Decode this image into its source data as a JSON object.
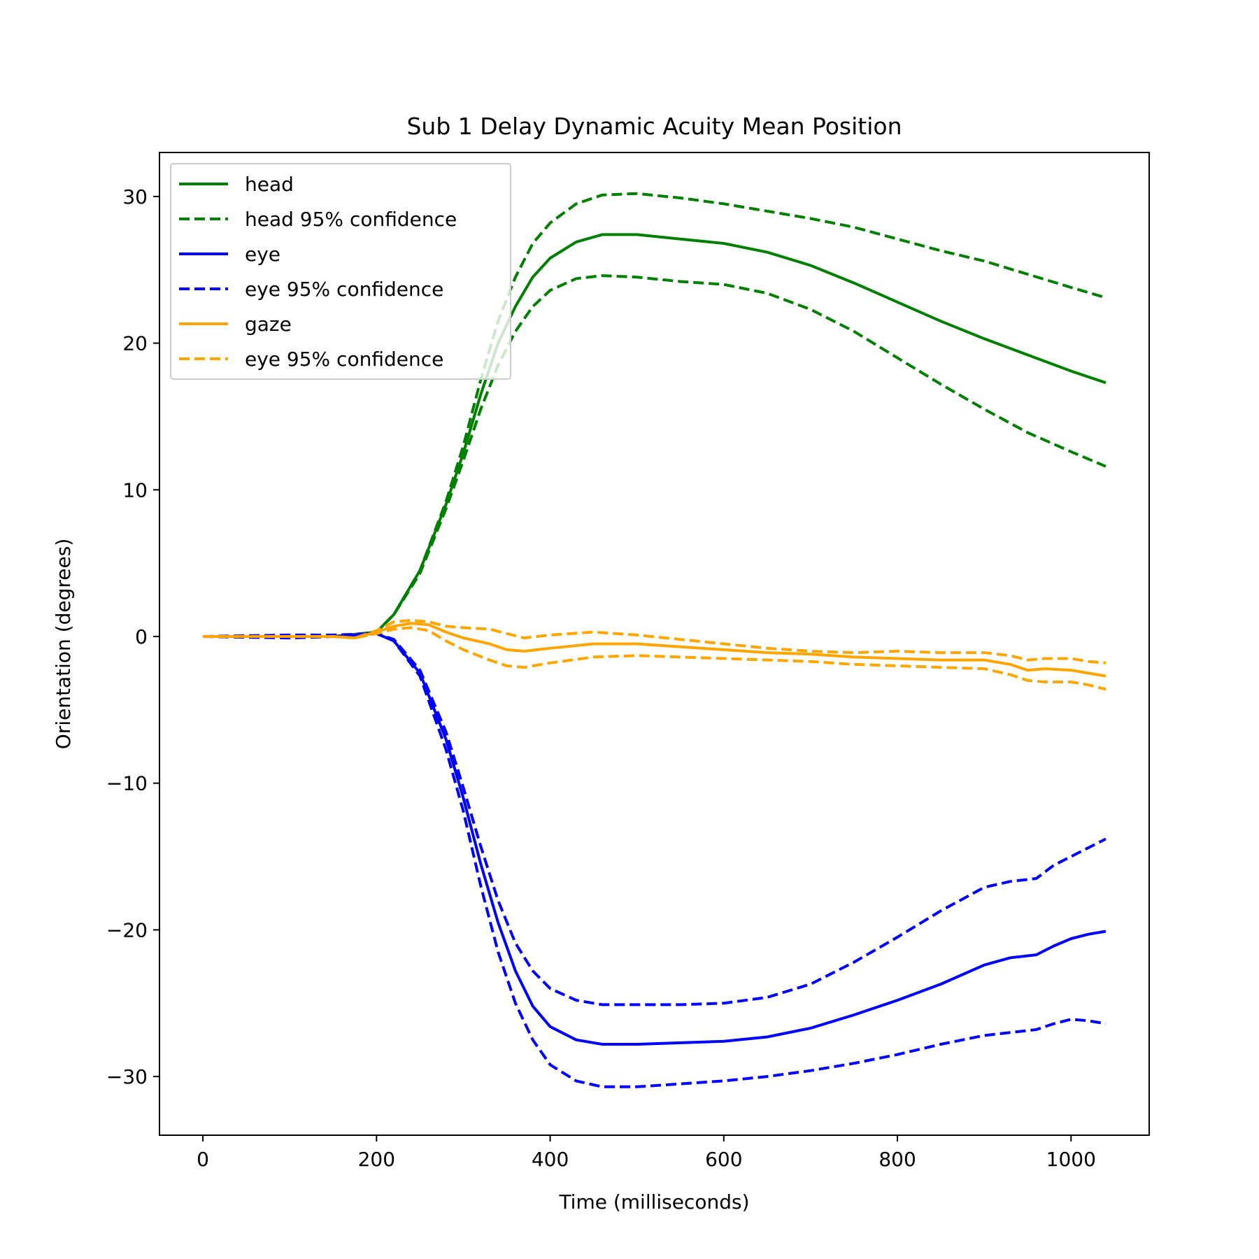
{
  "chart_data": {
    "type": "line",
    "title": "Sub 1 Delay Dynamic Acuity Mean Position",
    "xlabel": "Time (milliseconds)",
    "ylabel": "Orientation (degrees)",
    "xlim": [
      -50,
      1090
    ],
    "ylim": [
      -34,
      33
    ],
    "xticks": [
      0,
      200,
      400,
      600,
      800,
      1000
    ],
    "xtick_labels": [
      "0",
      "200",
      "400",
      "600",
      "800",
      "1000"
    ],
    "yticks": [
      -30,
      -20,
      -10,
      0,
      10,
      20,
      30
    ],
    "ytick_labels": [
      "−30",
      "−20",
      "−10",
      "0",
      "10",
      "20",
      "30"
    ],
    "grid": false,
    "legend_position": "upper-left",
    "series": [
      {
        "name": "head",
        "color": "#008000",
        "style": "solid",
        "points": [
          [
            0,
            0
          ],
          [
            100,
            0
          ],
          [
            150,
            0
          ],
          [
            200,
            0.3
          ],
          [
            220,
            1.5
          ],
          [
            250,
            4.5
          ],
          [
            280,
            9
          ],
          [
            300,
            12.5
          ],
          [
            320,
            16.5
          ],
          [
            340,
            20
          ],
          [
            360,
            22.5
          ],
          [
            380,
            24.5
          ],
          [
            400,
            25.8
          ],
          [
            430,
            26.9
          ],
          [
            460,
            27.4
          ],
          [
            500,
            27.4
          ],
          [
            550,
            27.1
          ],
          [
            600,
            26.8
          ],
          [
            650,
            26.2
          ],
          [
            700,
            25.3
          ],
          [
            750,
            24.1
          ],
          [
            800,
            22.8
          ],
          [
            850,
            21.5
          ],
          [
            900,
            20.3
          ],
          [
            950,
            19.2
          ],
          [
            1000,
            18.1
          ],
          [
            1040,
            17.3
          ]
        ]
      },
      {
        "name": "head 95% confidence",
        "color": "#008000",
        "style": "dashed",
        "points": [
          [
            0,
            0
          ],
          [
            100,
            0
          ],
          [
            150,
            0
          ],
          [
            200,
            0.3
          ],
          [
            220,
            1.5
          ],
          [
            250,
            4.5
          ],
          [
            280,
            9.2
          ],
          [
            300,
            13
          ],
          [
            320,
            17.5
          ],
          [
            340,
            21.5
          ],
          [
            360,
            24.5
          ],
          [
            380,
            26.8
          ],
          [
            400,
            28.2
          ],
          [
            430,
            29.5
          ],
          [
            460,
            30.1
          ],
          [
            500,
            30.2
          ],
          [
            550,
            29.9
          ],
          [
            600,
            29.5
          ],
          [
            650,
            29
          ],
          [
            700,
            28.5
          ],
          [
            750,
            27.9
          ],
          [
            800,
            27.1
          ],
          [
            850,
            26.3
          ],
          [
            900,
            25.6
          ],
          [
            950,
            24.7
          ],
          [
            1000,
            23.8
          ],
          [
            1040,
            23.1
          ]
        ]
      },
      {
        "name": "head 95% confidence lower",
        "color": "#008000",
        "style": "dashed",
        "points": [
          [
            0,
            0
          ],
          [
            100,
            0
          ],
          [
            150,
            0
          ],
          [
            200,
            0.3
          ],
          [
            220,
            1.5
          ],
          [
            250,
            4.3
          ],
          [
            280,
            8.7
          ],
          [
            300,
            12
          ],
          [
            320,
            15.5
          ],
          [
            340,
            18.5
          ],
          [
            360,
            20.8
          ],
          [
            380,
            22.5
          ],
          [
            400,
            23.6
          ],
          [
            430,
            24.4
          ],
          [
            460,
            24.6
          ],
          [
            500,
            24.5
          ],
          [
            550,
            24.2
          ],
          [
            600,
            24
          ],
          [
            650,
            23.4
          ],
          [
            700,
            22.3
          ],
          [
            750,
            20.8
          ],
          [
            800,
            19
          ],
          [
            850,
            17.2
          ],
          [
            900,
            15.5
          ],
          [
            950,
            13.9
          ],
          [
            1000,
            12.6
          ],
          [
            1040,
            11.6
          ]
        ]
      },
      {
        "name": "eye",
        "color": "#0000ff",
        "style": "solid",
        "points": [
          [
            0,
            0
          ],
          [
            100,
            0
          ],
          [
            150,
            0
          ],
          [
            200,
            0.2
          ],
          [
            220,
            -0.3
          ],
          [
            250,
            -2.5
          ],
          [
            280,
            -7
          ],
          [
            300,
            -11
          ],
          [
            320,
            -15.5
          ],
          [
            340,
            -19.5
          ],
          [
            360,
            -22.8
          ],
          [
            380,
            -25.2
          ],
          [
            400,
            -26.6
          ],
          [
            430,
            -27.5
          ],
          [
            460,
            -27.8
          ],
          [
            500,
            -27.8
          ],
          [
            550,
            -27.7
          ],
          [
            600,
            -27.6
          ],
          [
            650,
            -27.3
          ],
          [
            700,
            -26.7
          ],
          [
            750,
            -25.8
          ],
          [
            800,
            -24.8
          ],
          [
            850,
            -23.7
          ],
          [
            900,
            -22.4
          ],
          [
            930,
            -21.9
          ],
          [
            960,
            -21.7
          ],
          [
            980,
            -21.1
          ],
          [
            1000,
            -20.6
          ],
          [
            1020,
            -20.3
          ],
          [
            1040,
            -20.1
          ]
        ]
      },
      {
        "name": "eye 95% confidence",
        "color": "#0000ff",
        "style": "dashed",
        "points": [
          [
            0,
            0
          ],
          [
            100,
            0.1
          ],
          [
            150,
            0.1
          ],
          [
            200,
            0.2
          ],
          [
            220,
            -0.2
          ],
          [
            250,
            -2.3
          ],
          [
            280,
            -6.5
          ],
          [
            300,
            -10.3
          ],
          [
            320,
            -14.3
          ],
          [
            340,
            -18
          ],
          [
            360,
            -20.9
          ],
          [
            380,
            -22.8
          ],
          [
            400,
            -24
          ],
          [
            430,
            -24.8
          ],
          [
            460,
            -25.1
          ],
          [
            500,
            -25.1
          ],
          [
            550,
            -25.1
          ],
          [
            600,
            -25
          ],
          [
            650,
            -24.6
          ],
          [
            700,
            -23.7
          ],
          [
            750,
            -22.2
          ],
          [
            800,
            -20.5
          ],
          [
            850,
            -18.7
          ],
          [
            900,
            -17.1
          ],
          [
            930,
            -16.7
          ],
          [
            960,
            -16.5
          ],
          [
            980,
            -15.6
          ],
          [
            1000,
            -15
          ],
          [
            1020,
            -14.4
          ],
          [
            1040,
            -13.8
          ]
        ]
      },
      {
        "name": "eye 95% confidence lower",
        "color": "#0000ff",
        "style": "dashed",
        "points": [
          [
            0,
            0
          ],
          [
            100,
            -0.1
          ],
          [
            150,
            0
          ],
          [
            200,
            0.2
          ],
          [
            220,
            -0.3
          ],
          [
            250,
            -2.7
          ],
          [
            280,
            -7.7
          ],
          [
            300,
            -11.9
          ],
          [
            320,
            -17
          ],
          [
            340,
            -21.5
          ],
          [
            360,
            -25
          ],
          [
            380,
            -27.5
          ],
          [
            400,
            -29.2
          ],
          [
            430,
            -30.3
          ],
          [
            460,
            -30.7
          ],
          [
            500,
            -30.7
          ],
          [
            550,
            -30.5
          ],
          [
            600,
            -30.3
          ],
          [
            650,
            -30
          ],
          [
            700,
            -29.6
          ],
          [
            750,
            -29.1
          ],
          [
            800,
            -28.5
          ],
          [
            850,
            -27.8
          ],
          [
            900,
            -27.2
          ],
          [
            930,
            -27
          ],
          [
            960,
            -26.8
          ],
          [
            980,
            -26.4
          ],
          [
            1000,
            -26.1
          ],
          [
            1020,
            -26.2
          ],
          [
            1040,
            -26.4
          ]
        ]
      },
      {
        "name": "gaze",
        "color": "#ffa500",
        "style": "solid",
        "points": [
          [
            0,
            0
          ],
          [
            100,
            0
          ],
          [
            150,
            0
          ],
          [
            175,
            -0.1
          ],
          [
            200,
            0.3
          ],
          [
            220,
            0.7
          ],
          [
            240,
            0.9
          ],
          [
            260,
            0.8
          ],
          [
            280,
            0.3
          ],
          [
            300,
            -0.1
          ],
          [
            330,
            -0.5
          ],
          [
            350,
            -0.9
          ],
          [
            370,
            -1
          ],
          [
            400,
            -0.8
          ],
          [
            450,
            -0.5
          ],
          [
            500,
            -0.5
          ],
          [
            550,
            -0.7
          ],
          [
            600,
            -0.9
          ],
          [
            650,
            -1.1
          ],
          [
            700,
            -1.2
          ],
          [
            750,
            -1.4
          ],
          [
            800,
            -1.5
          ],
          [
            850,
            -1.6
          ],
          [
            900,
            -1.6
          ],
          [
            930,
            -1.9
          ],
          [
            950,
            -2.3
          ],
          [
            970,
            -2.2
          ],
          [
            1000,
            -2.3
          ],
          [
            1020,
            -2.5
          ],
          [
            1040,
            -2.7
          ]
        ]
      },
      {
        "name": "eye 95% confidence",
        "color": "#ffa500",
        "style": "dashed",
        "points": [
          [
            0,
            0
          ],
          [
            100,
            0
          ],
          [
            150,
            0
          ],
          [
            175,
            -0.1
          ],
          [
            200,
            0.4
          ],
          [
            220,
            1
          ],
          [
            240,
            1.1
          ],
          [
            260,
            1
          ],
          [
            280,
            0.7
          ],
          [
            300,
            0.6
          ],
          [
            330,
            0.5
          ],
          [
            350,
            0.2
          ],
          [
            370,
            -0.1
          ],
          [
            400,
            0.1
          ],
          [
            450,
            0.3
          ],
          [
            500,
            0.1
          ],
          [
            550,
            -0.2
          ],
          [
            600,
            -0.5
          ],
          [
            650,
            -0.8
          ],
          [
            700,
            -1
          ],
          [
            750,
            -1.1
          ],
          [
            800,
            -1
          ],
          [
            850,
            -1.1
          ],
          [
            900,
            -1.1
          ],
          [
            930,
            -1.3
          ],
          [
            950,
            -1.6
          ],
          [
            970,
            -1.5
          ],
          [
            1000,
            -1.5
          ],
          [
            1020,
            -1.7
          ],
          [
            1040,
            -1.8
          ]
        ]
      },
      {
        "name": "eye 95% confidence lower",
        "color": "#ffa500",
        "style": "dashed",
        "points": [
          [
            0,
            0
          ],
          [
            100,
            0
          ],
          [
            150,
            0
          ],
          [
            175,
            -0.1
          ],
          [
            200,
            0.2
          ],
          [
            220,
            0.5
          ],
          [
            240,
            0.6
          ],
          [
            260,
            0.4
          ],
          [
            280,
            -0.3
          ],
          [
            300,
            -0.9
          ],
          [
            330,
            -1.6
          ],
          [
            350,
            -2
          ],
          [
            370,
            -2.1
          ],
          [
            400,
            -1.8
          ],
          [
            450,
            -1.4
          ],
          [
            500,
            -1.3
          ],
          [
            550,
            -1.4
          ],
          [
            600,
            -1.5
          ],
          [
            650,
            -1.6
          ],
          [
            700,
            -1.7
          ],
          [
            750,
            -1.9
          ],
          [
            800,
            -2
          ],
          [
            850,
            -2.1
          ],
          [
            900,
            -2.2
          ],
          [
            930,
            -2.6
          ],
          [
            950,
            -3
          ],
          [
            970,
            -3.1
          ],
          [
            1000,
            -3.1
          ],
          [
            1020,
            -3.3
          ],
          [
            1040,
            -3.6
          ]
        ]
      }
    ],
    "legend": [
      {
        "label": "head",
        "color": "#008000",
        "style": "solid"
      },
      {
        "label": "head 95% confidence",
        "color": "#008000",
        "style": "dashed"
      },
      {
        "label": "eye",
        "color": "#0000ff",
        "style": "solid"
      },
      {
        "label": "eye 95% confidence",
        "color": "#0000ff",
        "style": "dashed"
      },
      {
        "label": "gaze",
        "color": "#ffa500",
        "style": "solid"
      },
      {
        "label": "eye 95% confidence",
        "color": "#ffa500",
        "style": "dashed"
      }
    ]
  }
}
